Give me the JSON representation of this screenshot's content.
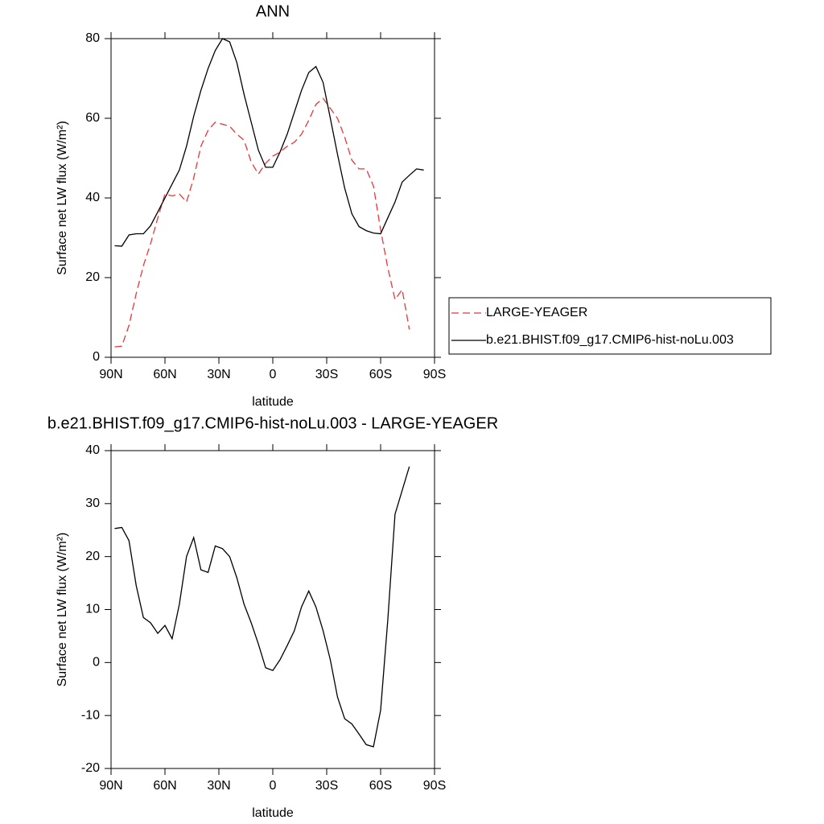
{
  "chart_data": [
    {
      "type": "line",
      "title": "ANN",
      "xlabel": "latitude",
      "ylabel": "Surface net LW flux (W/m²)",
      "x": [
        88,
        84,
        80,
        76,
        72,
        68,
        64,
        60,
        56,
        52,
        48,
        44,
        40,
        36,
        32,
        28,
        24,
        20,
        16,
        12,
        8,
        4,
        0,
        -4,
        -8,
        -12,
        -16,
        -20,
        -24,
        -28,
        -32,
        -36,
        -40,
        -44,
        -48,
        -52,
        -56,
        -60,
        -64,
        -68,
        -72,
        -76,
        -80,
        -84
      ],
      "series": [
        {
          "name": "LARGE-YEAGER",
          "color": "#e8353a",
          "dashed": true,
          "values": [
            2.6,
            2.8,
            8,
            16,
            23,
            28.5,
            35,
            41,
            40.5,
            41,
            39,
            45,
            53,
            57,
            59,
            58.5,
            58,
            56,
            54.5,
            49,
            46,
            48.7,
            50.5,
            51.5,
            53,
            54,
            56,
            59.5,
            63.5,
            65,
            62.5,
            60,
            55.3,
            49.5,
            47.3,
            47.3,
            43,
            32,
            22.5,
            14.5,
            17,
            7,
            null,
            null
          ]
        },
        {
          "name": "b.e21.BHIST.f09_g17.CMIP6-hist-noLu.003",
          "color": "#000000",
          "dashed": false,
          "values": [
            28,
            27.9,
            30.7,
            31,
            31,
            33,
            36.5,
            40,
            43.5,
            47,
            53,
            60.5,
            67,
            72.5,
            77,
            80,
            79.2,
            74,
            66,
            59,
            52,
            47.7,
            47.7,
            51.5,
            56,
            61.5,
            67,
            71.5,
            73,
            69,
            60,
            51,
            42.5,
            36,
            32.8,
            31.8,
            31.2,
            31,
            35,
            39,
            44,
            45.7,
            47.3,
            47
          ]
        }
      ],
      "xlim": [
        90,
        -90
      ],
      "xticks": [
        {
          "value": 90,
          "label": "90N"
        },
        {
          "value": 60,
          "label": "60N"
        },
        {
          "value": 30,
          "label": "30N"
        },
        0,
        {
          "value": -30,
          "label": "30S"
        },
        {
          "value": -60,
          "label": "60S"
        },
        {
          "value": -90,
          "label": "90S"
        }
      ],
      "ylim": [
        0,
        80
      ],
      "yticks": [
        0,
        20,
        40,
        60,
        80
      ],
      "legend": "outside-right"
    },
    {
      "type": "line",
      "title": "b.e21.BHIST.f09_g17.CMIP6-hist-noLu.003 - LARGE-YEAGER",
      "xlabel": "latitude",
      "ylabel": "Surface net LW flux (W/m²)",
      "x": [
        88,
        84,
        80,
        76,
        72,
        68,
        64,
        60,
        56,
        52,
        48,
        44,
        40,
        36,
        32,
        28,
        24,
        20,
        16,
        12,
        8,
        4,
        0,
        -4,
        -8,
        -12,
        -16,
        -20,
        -24,
        -28,
        -32,
        -36,
        -40,
        -44,
        -48,
        -52,
        -56,
        -60,
        -64,
        -68,
        -72,
        -76
      ],
      "values": [
        25.3,
        25.5,
        23,
        14.5,
        8.5,
        7.5,
        5.5,
        7,
        4.5,
        11,
        20,
        23.6,
        17.5,
        17,
        22,
        21.5,
        20,
        16,
        11,
        7.5,
        3.5,
        -1,
        -1.5,
        0.5,
        3.2,
        6,
        10.5,
        13.5,
        10.5,
        6,
        0.5,
        -6.5,
        -10.6,
        -11.6,
        -13.5,
        -15.5,
        -15.9,
        -9,
        8,
        28,
        32.5,
        37
      ],
      "color": "#000000",
      "xlim": [
        90,
        -90
      ],
      "xticks": [
        {
          "value": 90,
          "label": "90N"
        },
        {
          "value": 60,
          "label": "60N"
        },
        {
          "value": 30,
          "label": "30N"
        },
        0,
        {
          "value": -30,
          "label": "30S"
        },
        {
          "value": -60,
          "label": "60S"
        },
        {
          "value": -90,
          "label": "90S"
        }
      ],
      "ylim": [
        -20,
        40
      ],
      "yticks": [
        -20,
        -10,
        0,
        10,
        20,
        30,
        40
      ]
    }
  ]
}
